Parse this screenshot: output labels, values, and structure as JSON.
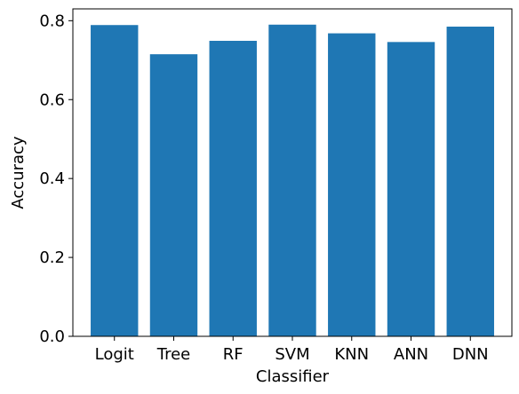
{
  "chart_data": {
    "type": "bar",
    "title": "",
    "xlabel": "Classifier",
    "ylabel": "Accuracy",
    "categories": [
      "Logit",
      "Tree",
      "RF",
      "SVM",
      "KNN",
      "ANN",
      "DNN"
    ],
    "values": [
      0.789,
      0.715,
      0.749,
      0.79,
      0.768,
      0.746,
      0.785
    ],
    "ylim": [
      0,
      0.83
    ],
    "yticks": [
      0.0,
      0.2,
      0.4,
      0.6,
      0.8
    ],
    "ytick_labels": [
      "0.0",
      "0.2",
      "0.4",
      "0.6",
      "0.8"
    ],
    "bar_color": "#1f77b4",
    "grid": false,
    "legend": "none"
  }
}
